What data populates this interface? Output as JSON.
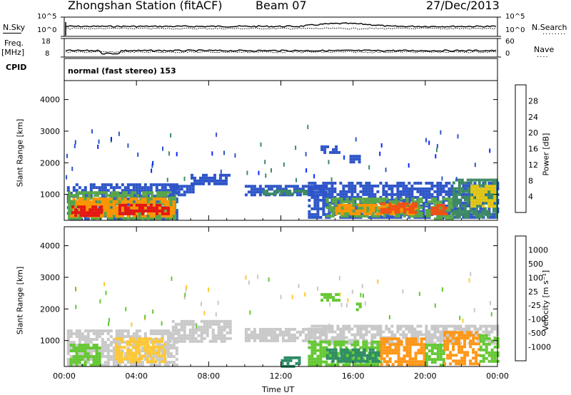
{
  "header": {
    "station": "Zhongshan Station (fitACF)",
    "beam": "Beam 07",
    "date": "27/Dec/2013"
  },
  "top_panels": {
    "nsky_label": "N.Sky",
    "nsearch_label": "N.Search",
    "nsky_ticks": [
      "10^5",
      "10^0"
    ],
    "nsearch_ticks": [
      "10^5",
      "10^0"
    ],
    "freq_label": "Freq.",
    "freq_unit": "[MHz]",
    "freq_ticks": [
      "18",
      "8"
    ],
    "nave_label": "Nave",
    "nave_ticks": [
      "60",
      "0"
    ],
    "cpid_label": "CPID",
    "cpid_text": "normal (fast stereo) 153",
    "dotted_glyph": "........",
    "dotted_glyph_short": "...."
  },
  "chart_data": [
    {
      "type": "heatmap",
      "name": "power",
      "ylabel": "Slant Range [km]",
      "x_ticks": [
        "00:00",
        "04:00",
        "08:00",
        "12:00",
        "16:00",
        "20:00",
        "00:00"
      ],
      "y_ticks": [
        1000,
        2000,
        3000,
        4000
      ],
      "ylim": [
        180,
        4600
      ],
      "xlim_hours": [
        0,
        24
      ],
      "colorbar": {
        "label": "Power [dB]",
        "ticks": [
          "4",
          "8",
          "12",
          "16",
          "20",
          "24",
          "28"
        ],
        "colors": [
          "#0a28ff",
          "#2d55c8",
          "#3c8a64",
          "#5aa846",
          "#e6c814",
          "#ff9600",
          "#f05014",
          "#e61414"
        ]
      },
      "regions": [
        {
          "x0": 0.15,
          "x1": 6.3,
          "r0": 200,
          "r1": 1350,
          "level": 1
        },
        {
          "x0": 0.2,
          "x1": 6.1,
          "r0": 250,
          "r1": 1100,
          "level": 3
        },
        {
          "x0": 0.3,
          "x1": 6.0,
          "r0": 350,
          "r1": 900,
          "level": 5
        },
        {
          "x0": 3.0,
          "x1": 5.8,
          "r0": 350,
          "r1": 700,
          "level": 7
        },
        {
          "x0": 0.4,
          "x1": 2.0,
          "r0": 350,
          "r1": 650,
          "level": 7
        },
        {
          "x0": 5.8,
          "x1": 7.2,
          "r0": 1000,
          "r1": 1300,
          "level": 1
        },
        {
          "x0": 7.0,
          "x1": 9.2,
          "r0": 1350,
          "r1": 1650,
          "level": 1
        },
        {
          "x0": 10.0,
          "x1": 14.5,
          "r0": 950,
          "r1": 1300,
          "level": 1
        },
        {
          "x0": 11.0,
          "x1": 13.5,
          "r0": 1000,
          "r1": 1150,
          "level": 2
        },
        {
          "x0": 13.5,
          "x1": 24.0,
          "r0": 250,
          "r1": 1400,
          "level": 1
        },
        {
          "x0": 14.5,
          "x1": 19.8,
          "r0": 300,
          "r1": 900,
          "level": 3
        },
        {
          "x0": 15.0,
          "x1": 19.5,
          "r0": 350,
          "r1": 700,
          "level": 5
        },
        {
          "x0": 17.5,
          "x1": 19.5,
          "r0": 400,
          "r1": 750,
          "level": 6
        },
        {
          "x0": 20.0,
          "x1": 21.5,
          "r0": 200,
          "r1": 900,
          "level": 3
        },
        {
          "x0": 20.3,
          "x1": 21.2,
          "r0": 350,
          "r1": 700,
          "level": 6
        },
        {
          "x0": 21.5,
          "x1": 24.0,
          "r0": 300,
          "r1": 1500,
          "level": 2
        },
        {
          "x0": 22.5,
          "x1": 23.8,
          "r0": 600,
          "r1": 1300,
          "level": 4
        },
        {
          "x0": 14.2,
          "x1": 15.2,
          "r0": 2300,
          "r1": 2550,
          "level": 1
        },
        {
          "x0": 15.8,
          "x1": 16.4,
          "r0": 2050,
          "r1": 2250,
          "level": 1
        }
      ]
    },
    {
      "type": "heatmap",
      "name": "velocity",
      "ylabel": "Slant Range [km]",
      "x_ticks": [
        "00:00",
        "04:00",
        "08:00",
        "12:00",
        "16:00",
        "20:00",
        "00:00"
      ],
      "xlabel": "Time UT",
      "y_ticks": [
        1000,
        2000,
        3000,
        4000
      ],
      "ylim": [
        180,
        4600
      ],
      "xlim_hours": [
        0,
        24
      ],
      "colorbar": {
        "label": "Velocity [m s⁻¹]",
        "ticks": [
          "1000",
          "500",
          "100",
          "25",
          "-25",
          "-100",
          "-500",
          "-1000"
        ],
        "colors": [
          "#1e32c8",
          "#2d64b4",
          "#2d8c64",
          "#64c832",
          "#c8c8c8",
          "#ffc832",
          "#ff9614",
          "#f05a14",
          "#e61414"
        ]
      },
      "regions": [
        {
          "x0": 0.15,
          "x1": 6.3,
          "r0": 200,
          "r1": 1350,
          "level": 4
        },
        {
          "x0": 0.3,
          "x1": 2.0,
          "r0": 250,
          "r1": 900,
          "level": 3
        },
        {
          "x0": 2.8,
          "x1": 5.5,
          "r0": 300,
          "r1": 1100,
          "level": 5
        },
        {
          "x0": 5.8,
          "x1": 9.2,
          "r0": 1000,
          "r1": 1650,
          "level": 4
        },
        {
          "x0": 10.0,
          "x1": 14.5,
          "r0": 950,
          "r1": 1400,
          "level": 4
        },
        {
          "x0": 12.0,
          "x1": 13.0,
          "r0": 200,
          "r1": 500,
          "level": 2
        },
        {
          "x0": 13.5,
          "x1": 24.0,
          "r0": 900,
          "r1": 1500,
          "level": 4
        },
        {
          "x0": 13.5,
          "x1": 17.5,
          "r0": 250,
          "r1": 1000,
          "level": 3
        },
        {
          "x0": 14.5,
          "x1": 17.5,
          "r0": 350,
          "r1": 750,
          "level": 2
        },
        {
          "x0": 17.5,
          "x1": 20.0,
          "r0": 250,
          "r1": 1100,
          "level": 6
        },
        {
          "x0": 20.0,
          "x1": 21.0,
          "r0": 250,
          "r1": 900,
          "level": 3
        },
        {
          "x0": 21.0,
          "x1": 23.0,
          "r0": 250,
          "r1": 1300,
          "level": 6
        },
        {
          "x0": 23.0,
          "x1": 24.0,
          "r0": 300,
          "r1": 1200,
          "level": 3
        },
        {
          "x0": 14.2,
          "x1": 15.2,
          "r0": 2300,
          "r1": 2500,
          "level": 3
        },
        {
          "x0": 16.0,
          "x1": 16.4,
          "r0": 2000,
          "r1": 2200,
          "level": 3
        }
      ]
    }
  ]
}
